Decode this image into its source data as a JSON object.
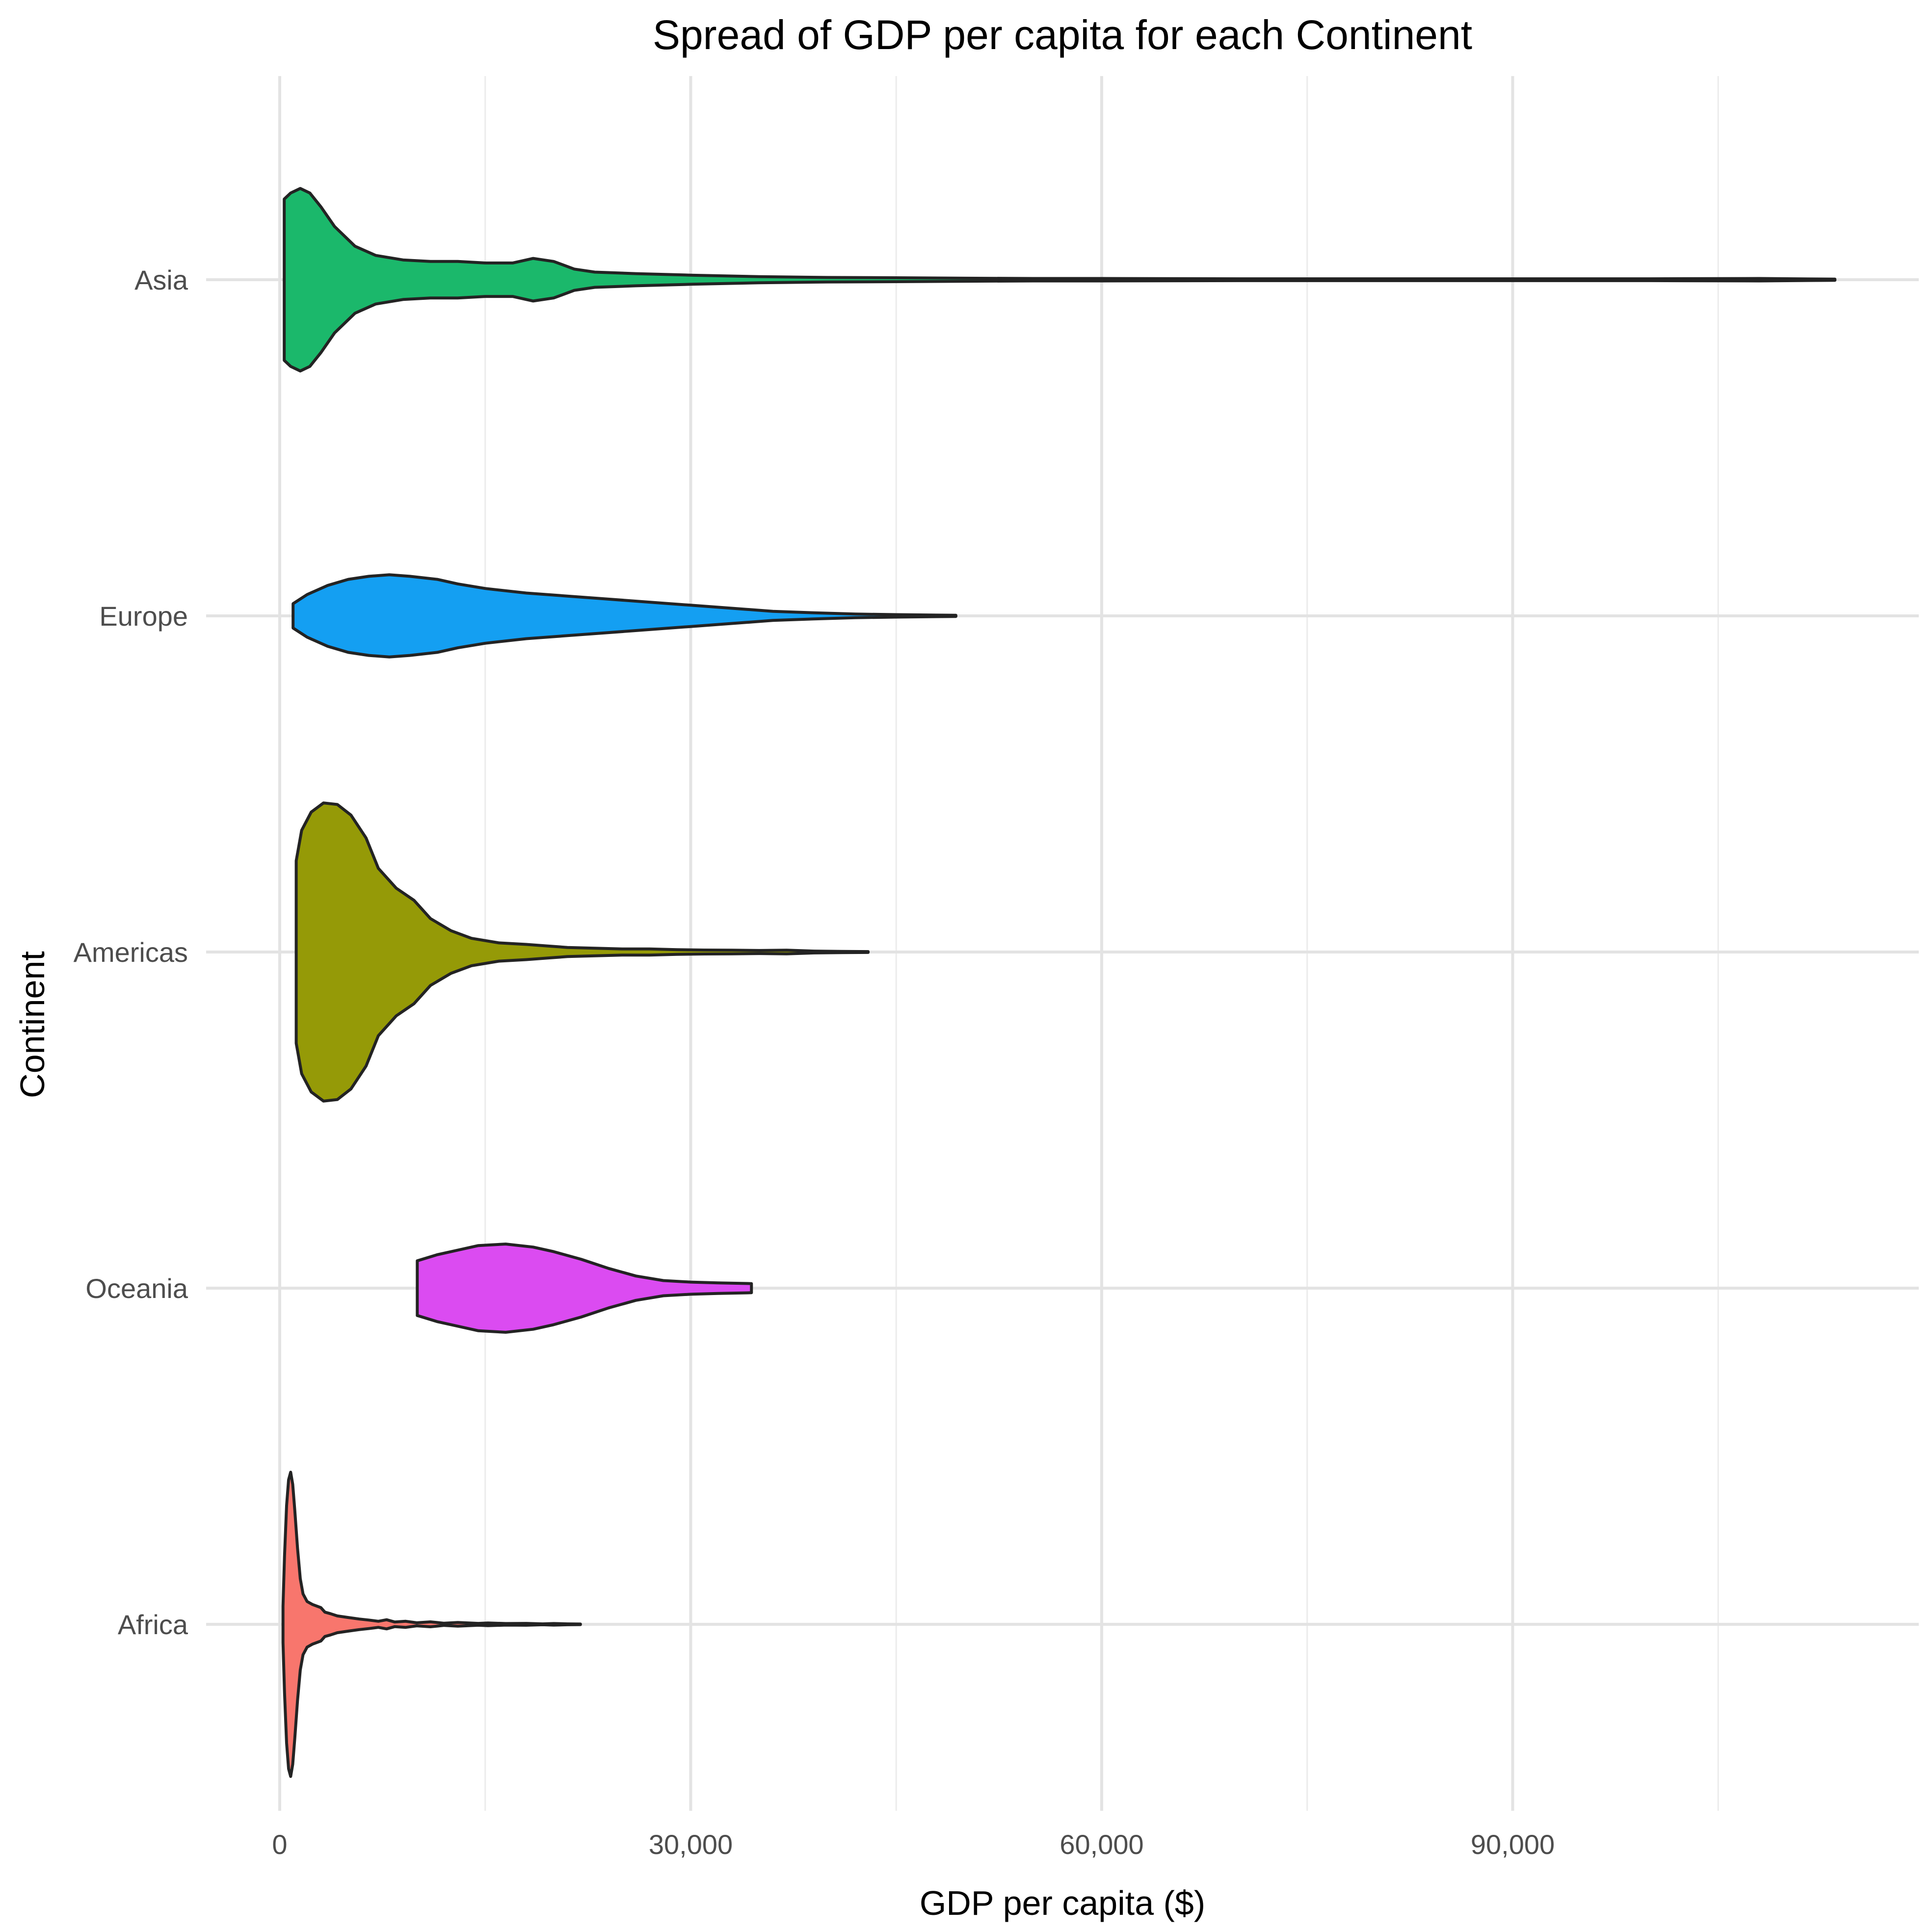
{
  "chart_data": {
    "type": "violin",
    "orientation": "horizontal",
    "title": "Spread of GDP per capita for each Continent",
    "xlabel": "GDP per capita ($)",
    "ylabel": "Continent",
    "xlim": [
      -3000,
      117500
    ],
    "xticks": [
      0,
      30000,
      60000,
      90000
    ],
    "xtick_labels": [
      "0",
      "30,000",
      "60,000",
      "90,000"
    ],
    "grid": true,
    "legend": "none",
    "categories": [
      "Africa",
      "Oceania",
      "Americas",
      "Europe",
      "Asia"
    ],
    "series": [
      {
        "name": "Africa",
        "color": "#F8766D",
        "min": 241,
        "max": 21951,
        "density": [
          [
            241,
            0.12
          ],
          [
            350,
            0.45
          ],
          [
            500,
            0.78
          ],
          [
            650,
            0.95
          ],
          [
            800,
            1.0
          ],
          [
            950,
            0.92
          ],
          [
            1100,
            0.75
          ],
          [
            1300,
            0.5
          ],
          [
            1500,
            0.3
          ],
          [
            1700,
            0.2
          ],
          [
            2000,
            0.15
          ],
          [
            2400,
            0.13
          ],
          [
            3000,
            0.11
          ],
          [
            3300,
            0.08
          ],
          [
            3700,
            0.07
          ],
          [
            4200,
            0.055
          ],
          [
            5000,
            0.045
          ],
          [
            5800,
            0.035
          ],
          [
            6500,
            0.028
          ],
          [
            7200,
            0.02
          ],
          [
            7800,
            0.03
          ],
          [
            8400,
            0.015
          ],
          [
            9200,
            0.02
          ],
          [
            10000,
            0.01
          ],
          [
            11000,
            0.016
          ],
          [
            12000,
            0.007
          ],
          [
            13000,
            0.012
          ],
          [
            14500,
            0.006
          ],
          [
            15200,
            0.009
          ],
          [
            16500,
            0.005
          ],
          [
            18000,
            0.006
          ],
          [
            19200,
            0.003
          ],
          [
            20000,
            0.005
          ],
          [
            21000,
            0.003
          ],
          [
            21951,
            0.002
          ]
        ]
      },
      {
        "name": "Oceania",
        "color": "#DB4BF1",
        "min": 10040,
        "max": 34435,
        "density": [
          [
            10040,
            0.18
          ],
          [
            11500,
            0.22
          ],
          [
            13000,
            0.25
          ],
          [
            14500,
            0.28
          ],
          [
            16500,
            0.29
          ],
          [
            18500,
            0.27
          ],
          [
            20000,
            0.24
          ],
          [
            22000,
            0.19
          ],
          [
            24000,
            0.13
          ],
          [
            26000,
            0.08
          ],
          [
            28000,
            0.05
          ],
          [
            30000,
            0.04
          ],
          [
            32000,
            0.035
          ],
          [
            34435,
            0.03
          ]
        ]
      },
      {
        "name": "Americas",
        "color": "#959A07",
        "min": 1202,
        "max": 42952,
        "density": [
          [
            1202,
            0.6
          ],
          [
            1600,
            0.8
          ],
          [
            2300,
            0.92
          ],
          [
            3200,
            0.98
          ],
          [
            4200,
            0.97
          ],
          [
            5200,
            0.9
          ],
          [
            6300,
            0.75
          ],
          [
            7200,
            0.55
          ],
          [
            8500,
            0.42
          ],
          [
            9800,
            0.34
          ],
          [
            11000,
            0.22
          ],
          [
            12500,
            0.14
          ],
          [
            14000,
            0.09
          ],
          [
            16000,
            0.06
          ],
          [
            18000,
            0.05
          ],
          [
            19500,
            0.04
          ],
          [
            21000,
            0.03
          ],
          [
            23000,
            0.025
          ],
          [
            25000,
            0.02
          ],
          [
            27000,
            0.02
          ],
          [
            29000,
            0.015
          ],
          [
            31000,
            0.013
          ],
          [
            33000,
            0.012
          ],
          [
            35000,
            0.01
          ],
          [
            37000,
            0.012
          ],
          [
            39000,
            0.006
          ],
          [
            41000,
            0.004
          ],
          [
            42952,
            0.003
          ]
        ]
      },
      {
        "name": "Europe",
        "color": "#149FF2",
        "min": 974,
        "max": 49357,
        "density": [
          [
            974,
            0.08
          ],
          [
            2000,
            0.14
          ],
          [
            3500,
            0.2
          ],
          [
            5000,
            0.24
          ],
          [
            6500,
            0.26
          ],
          [
            8000,
            0.27
          ],
          [
            9500,
            0.26
          ],
          [
            11500,
            0.24
          ],
          [
            13000,
            0.21
          ],
          [
            15000,
            0.18
          ],
          [
            18000,
            0.15
          ],
          [
            21000,
            0.13
          ],
          [
            24000,
            0.11
          ],
          [
            27000,
            0.09
          ],
          [
            30000,
            0.07
          ],
          [
            33000,
            0.05
          ],
          [
            36000,
            0.03
          ],
          [
            39000,
            0.02
          ],
          [
            42000,
            0.012
          ],
          [
            45000,
            0.008
          ],
          [
            49357,
            0.004
          ]
        ]
      },
      {
        "name": "Asia",
        "color": "#1BB86B",
        "min": 331,
        "max": 113523,
        "density": [
          [
            331,
            0.53
          ],
          [
            800,
            0.57
          ],
          [
            1500,
            0.6
          ],
          [
            2200,
            0.57
          ],
          [
            3000,
            0.48
          ],
          [
            4000,
            0.35
          ],
          [
            5500,
            0.22
          ],
          [
            7000,
            0.16
          ],
          [
            9000,
            0.13
          ],
          [
            11000,
            0.12
          ],
          [
            13000,
            0.12
          ],
          [
            15000,
            0.11
          ],
          [
            17000,
            0.11
          ],
          [
            18500,
            0.14
          ],
          [
            20000,
            0.12
          ],
          [
            21500,
            0.07
          ],
          [
            23000,
            0.05
          ],
          [
            26000,
            0.04
          ],
          [
            30000,
            0.03
          ],
          [
            35000,
            0.02
          ],
          [
            40000,
            0.015
          ],
          [
            45000,
            0.013
          ],
          [
            50000,
            0.01
          ],
          [
            55000,
            0.008
          ],
          [
            60000,
            0.008
          ],
          [
            70000,
            0.006
          ],
          [
            80000,
            0.006
          ],
          [
            90000,
            0.006
          ],
          [
            100000,
            0.006
          ],
          [
            108000,
            0.008
          ],
          [
            113523,
            0.004
          ]
        ]
      }
    ]
  }
}
